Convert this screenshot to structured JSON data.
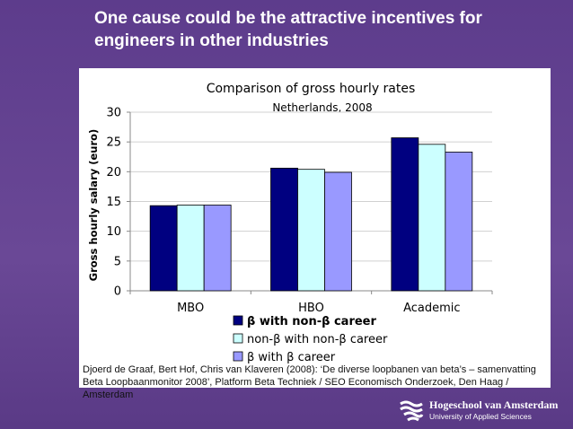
{
  "slide": {
    "title": "One cause could be the attractive incentives for engineers in other industries",
    "citation": "Djoerd de Graaf, Bert Hof, Chris van Klaveren (2008): ‘De diverse loopbanen van beta’s – samenvatting Beta Loopbaanmonitor 2008’, Platform Beta Techniek / SEO Economisch Onderzoek, Den Haag / Amsterdam",
    "logo_name": "Hogeschool van Amsterdam",
    "logo_subtitle": "University of Applied Sciences",
    "colors": {
      "background": "#5d3c8c",
      "title": "#ffffff"
    }
  },
  "chart_data": {
    "type": "bar",
    "title": "Comparison of gross hourly rates",
    "subtitle": "Netherlands, 2008",
    "xlabel": "",
    "ylabel": "Gross hourly salary (euro)",
    "ylim": [
      0,
      30
    ],
    "yticks": [
      0,
      5,
      10,
      15,
      20,
      25,
      30
    ],
    "grid": true,
    "categories": [
      "MBO",
      "HBO",
      "Academic"
    ],
    "series": [
      {
        "name": "β with non-β career",
        "values": [
          14.3,
          20.6,
          25.7
        ],
        "color": "#000080",
        "bold": true
      },
      {
        "name": "non-β with non-β career",
        "values": [
          14.4,
          20.4,
          24.6
        ],
        "color": "#ccffff",
        "bold": false
      },
      {
        "name": "β with β career",
        "values": [
          14.4,
          19.9,
          23.3
        ],
        "color": "#9999ff",
        "bold": false
      }
    ],
    "legend_position": "bottom"
  }
}
